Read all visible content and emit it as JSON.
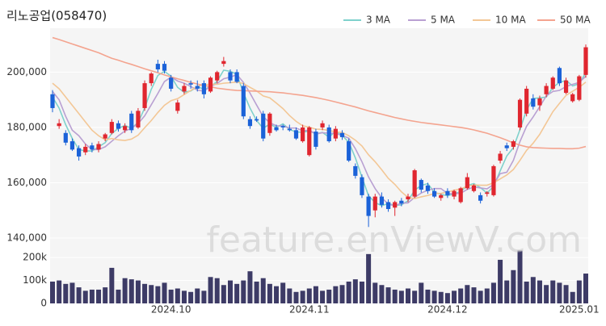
{
  "chart_data": {
    "type": "candlestick",
    "title": "리노공업(058470)",
    "watermark": "feature.enViewV.com",
    "categories": [
      null,
      null,
      null,
      null,
      null,
      null,
      null,
      null,
      null,
      null,
      null,
      null,
      null,
      null,
      null,
      null,
      null,
      null,
      "2024.10",
      null,
      null,
      null,
      null,
      null,
      null,
      null,
      null,
      null,
      null,
      null,
      null,
      null,
      null,
      null,
      null,
      null,
      null,
      null,
      null,
      "2024.11",
      null,
      null,
      null,
      null,
      null,
      null,
      null,
      null,
      null,
      null,
      null,
      null,
      null,
      null,
      null,
      null,
      null,
      null,
      null,
      null,
      "2024.12",
      null,
      null,
      null,
      null,
      null,
      null,
      null,
      null,
      null,
      null,
      null,
      null,
      null,
      null,
      null,
      null,
      null,
      null,
      null,
      "2025.01",
      null
    ],
    "open": [
      192000,
      180500,
      178000,
      175000,
      172500,
      171000,
      173500,
      172000,
      176000,
      178000,
      181500,
      179000,
      185000,
      180000,
      187000,
      196000,
      203000,
      203000,
      198000,
      186000,
      193000,
      196000,
      195000,
      196000,
      193000,
      197000,
      203000,
      200000,
      200000,
      195000,
      183000,
      183000,
      185000,
      178000,
      180000,
      180500,
      179500,
      179000,
      175000,
      170000,
      178500,
      180000,
      180000,
      176000,
      178000,
      175000,
      166000,
      162000,
      155000,
      150000,
      155000,
      153000,
      151000,
      153500,
      154000,
      155000,
      161000,
      159000,
      157000,
      154500,
      157000,
      155000,
      153000,
      158000,
      157000,
      155500,
      156000,
      155500,
      168000,
      173500,
      173000,
      180000,
      185000,
      190500,
      188000,
      192000,
      194000,
      201500,
      192500,
      189500,
      190000,
      199000
    ],
    "high": [
      193500,
      183000,
      179000,
      176000,
      173500,
      174000,
      174500,
      175000,
      178000,
      183000,
      182500,
      181500,
      186000,
      187000,
      197000,
      200000,
      204500,
      204000,
      199000,
      190000,
      196000,
      197000,
      197000,
      197000,
      198500,
      200500,
      205500,
      201000,
      201000,
      196000,
      184000,
      184000,
      186000,
      185500,
      181000,
      181000,
      181000,
      180000,
      181000,
      180500,
      179500,
      182500,
      181000,
      180500,
      179000,
      176000,
      167000,
      163000,
      156000,
      156000,
      156500,
      154000,
      153500,
      154500,
      156000,
      165000,
      161500,
      160000,
      158000,
      156000,
      158000,
      157500,
      158500,
      163500,
      159500,
      156500,
      157000,
      166500,
      171500,
      174500,
      175500,
      190500,
      195000,
      192000,
      191500,
      196000,
      198500,
      202000,
      198000,
      192500,
      199000,
      210000
    ],
    "low": [
      185500,
      179500,
      173500,
      171500,
      168000,
      170000,
      171000,
      171000,
      175000,
      177500,
      178500,
      178000,
      178000,
      179500,
      186000,
      195000,
      200000,
      199500,
      193000,
      185000,
      192000,
      194000,
      193000,
      190500,
      192500,
      196000,
      202000,
      196000,
      196000,
      183000,
      179500,
      182000,
      175000,
      177000,
      178500,
      179000,
      178500,
      175500,
      174500,
      169500,
      172000,
      179000,
      174500,
      175000,
      175500,
      167500,
      161500,
      154500,
      144000,
      147500,
      151000,
      149500,
      148000,
      151500,
      153000,
      154500,
      156500,
      156000,
      154500,
      153500,
      154500,
      154000,
      152500,
      157500,
      156500,
      152500,
      155000,
      155000,
      167000,
      171500,
      172000,
      179000,
      184000,
      186500,
      186000,
      191000,
      193500,
      195000,
      192000,
      189000,
      189500,
      198000
    ],
    "close": [
      187000,
      181500,
      174500,
      172000,
      169500,
      173000,
      172000,
      174000,
      177500,
      182000,
      179500,
      180500,
      179000,
      186000,
      196000,
      199500,
      201000,
      200500,
      194000,
      189000,
      195000,
      195500,
      194000,
      192000,
      198000,
      200000,
      204000,
      197000,
      196500,
      184000,
      180500,
      182500,
      176000,
      185000,
      179000,
      180000,
      179000,
      176000,
      180000,
      180000,
      173000,
      181500,
      175000,
      179500,
      176500,
      168000,
      162500,
      155500,
      148000,
      155000,
      152000,
      150500,
      153000,
      152500,
      155000,
      164500,
      157500,
      157000,
      155000,
      155500,
      155500,
      157000,
      158000,
      162000,
      159000,
      153500,
      156500,
      166000,
      170500,
      172500,
      175000,
      190000,
      194000,
      187500,
      190500,
      195000,
      198000,
      196000,
      197000,
      192000,
      198500,
      209000
    ],
    "up_color": "#e0262f",
    "down_color": "#1b62d8",
    "ylim": [
      140000,
      215000
    ],
    "yticks": [
      {
        "value": 140000,
        "label": "140,000"
      },
      {
        "value": 160000,
        "label": "160,000"
      },
      {
        "value": 180000,
        "label": "180,000"
      },
      {
        "value": 200000,
        "label": "200,000"
      }
    ],
    "grid": true,
    "series": [
      {
        "name": "3 MA",
        "color": "#7fd1cc",
        "values": [
          191000,
          187000,
          181000,
          176000,
          172000,
          171500,
          171500,
          173000,
          174500,
          177800,
          179700,
          180700,
          179700,
          181800,
          187000,
          193800,
          198800,
          200300,
          198500,
          194500,
          192700,
          193200,
          194800,
          193800,
          194700,
          196700,
          200700,
          200300,
          199200,
          192500,
          187000,
          182500,
          179700,
          181200,
          180000,
          181300,
          179300,
          178300,
          178300,
          178700,
          177700,
          178200,
          176500,
          178700,
          177000,
          174700,
          169000,
          162000,
          155300,
          152800,
          151700,
          152500,
          151800,
          152000,
          153500,
          157300,
          159000,
          159700,
          156500,
          155800,
          155300,
          156000,
          156800,
          159000,
          159700,
          158200,
          156300,
          158700,
          164300,
          169700,
          172700,
          179200,
          186300,
          190500,
          190700,
          191000,
          194500,
          196300,
          197000,
          195000,
          195800,
          199800
        ]
      },
      {
        "name": "5 MA",
        "color": "#b9a0d2",
        "values": [
          193000,
          190000,
          184000,
          179000,
          177000,
          174000,
          172000,
          172000,
          173000,
          175000,
          177000,
          178700,
          179700,
          181400,
          184200,
          188200,
          192300,
          196600,
          198200,
          196800,
          196000,
          194800,
          193500,
          193100,
          194900,
          195900,
          197600,
          198200,
          199100,
          196300,
          192400,
          188100,
          183900,
          181700,
          180600,
          180500,
          179800,
          179800,
          178800,
          179000,
          177600,
          178100,
          177900,
          177800,
          177100,
          176100,
          172300,
          167600,
          162100,
          157900,
          154600,
          152200,
          151700,
          152600,
          152700,
          154700,
          156300,
          157300,
          157900,
          157900,
          156100,
          156000,
          156200,
          157600,
          158500,
          158100,
          157800,
          159400,
          163300,
          163800,
          168100,
          174900,
          180400,
          183800,
          187500,
          191400,
          193000,
          193400,
          194800,
          195600,
          196300,
          198500
        ]
      },
      {
        "name": "10 MA",
        "color": "#f3c796",
        "values": [
          196000,
          194000,
          191000,
          188000,
          185000,
          182000,
          179000,
          177000,
          175500,
          176000,
          175500,
          175300,
          175800,
          177200,
          179900,
          182500,
          185400,
          188000,
          189700,
          190400,
          191900,
          193400,
          194900,
          195500,
          195600,
          195600,
          196000,
          196200,
          196400,
          195900,
          194500,
          193200,
          191400,
          190700,
          188800,
          186800,
          184300,
          182200,
          180600,
          180100,
          179400,
          179300,
          178900,
          178400,
          178200,
          177000,
          175400,
          173300,
          170100,
          167600,
          164700,
          161600,
          159400,
          156700,
          154700,
          154300,
          154900,
          155400,
          156100,
          156200,
          156600,
          157300,
          157800,
          158700,
          159200,
          159100,
          159100,
          160000,
          161400,
          162800,
          164800,
          168100,
          171700,
          174300,
          177500,
          181600,
          185700,
          188700,
          191600,
          193100,
          194500,
          196400
        ]
      },
      {
        "name": "50 MA",
        "color": "#f4a48f",
        "values": [
          212500,
          211800,
          211000,
          210200,
          209400,
          208600,
          207800,
          207000,
          206000,
          205000,
          204300,
          203500,
          202800,
          202000,
          201200,
          200500,
          199800,
          199000,
          198300,
          197600,
          197000,
          196300,
          195700,
          195200,
          194700,
          194200,
          193900,
          193600,
          193400,
          193300,
          193200,
          193100,
          193000,
          192900,
          192700,
          192500,
          192200,
          191900,
          191600,
          191200,
          190800,
          190300,
          189800,
          189200,
          188600,
          188000,
          187400,
          186700,
          186000,
          185400,
          184800,
          184200,
          183600,
          183100,
          182600,
          182200,
          181800,
          181500,
          181200,
          180900,
          180600,
          180300,
          180000,
          179600,
          179100,
          178500,
          177900,
          177100,
          176300,
          175400,
          174400,
          173600,
          173000,
          172700,
          172600,
          172500,
          172400,
          172400,
          172300,
          172300,
          172500,
          173100
        ]
      }
    ],
    "volume": {
      "color": "#3d3b66",
      "ylim": [
        0,
        225000
      ],
      "yticks": [
        0,
        {
          "value": 100000,
          "label": "100k"
        },
        {
          "value": 200000,
          "label": "200k"
        }
      ],
      "values": [
        95000,
        100000,
        85000,
        90000,
        70000,
        55000,
        60000,
        60000,
        70000,
        155000,
        60000,
        110000,
        105000,
        100000,
        85000,
        80000,
        75000,
        90000,
        60000,
        65000,
        55000,
        50000,
        65000,
        55000,
        115000,
        110000,
        80000,
        100000,
        85000,
        100000,
        140000,
        95000,
        110000,
        85000,
        75000,
        90000,
        65000,
        50000,
        55000,
        65000,
        75000,
        55000,
        60000,
        75000,
        80000,
        95000,
        105000,
        95000,
        215000,
        90000,
        80000,
        70000,
        60000,
        55000,
        65000,
        55000,
        90000,
        60000,
        55000,
        50000,
        45000,
        55000,
        65000,
        80000,
        70000,
        55000,
        65000,
        90000,
        190000,
        100000,
        145000,
        230000,
        95000,
        115000,
        100000,
        80000,
        100000,
        90000,
        80000,
        50000,
        100000,
        130000
      ]
    }
  }
}
